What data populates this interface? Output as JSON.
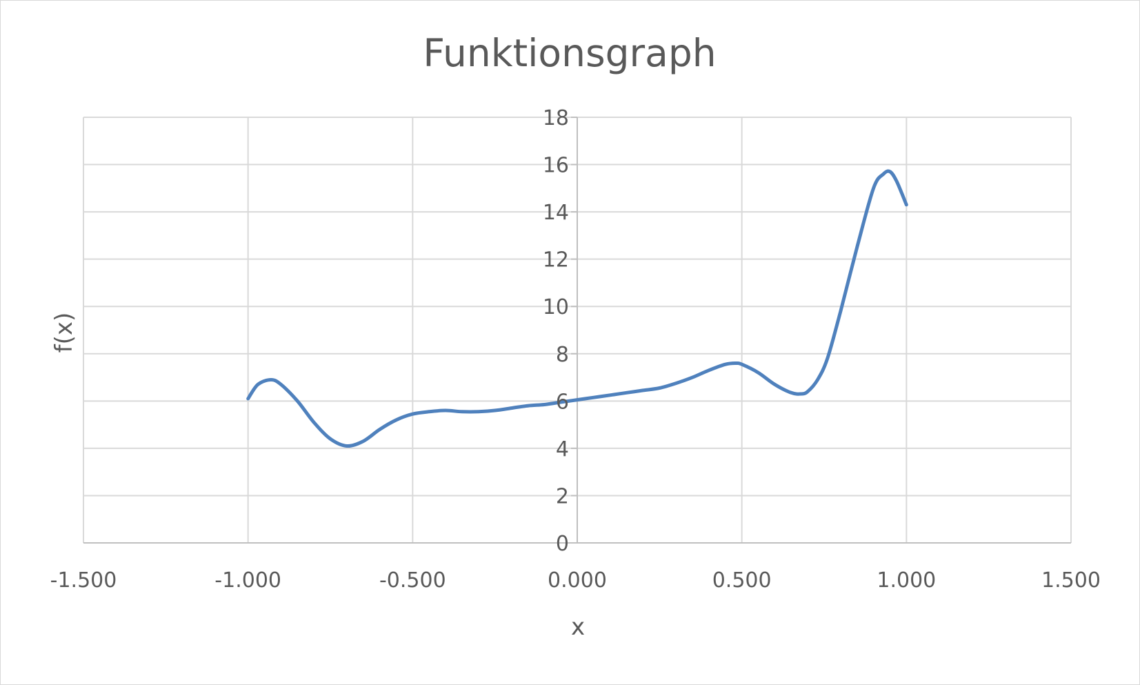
{
  "chart_data": {
    "type": "line",
    "title": "Funktionsgraph",
    "xlabel": "x",
    "ylabel": "f(x)",
    "xlim": [
      -1.5,
      1.5
    ],
    "ylim": [
      0,
      18
    ],
    "x_ticks": [
      "-1.500",
      "-1.000",
      "-0.500",
      "0.000",
      "0.500",
      "1.000",
      "1.500"
    ],
    "y_ticks": [
      "0",
      "2",
      "4",
      "6",
      "8",
      "10",
      "12",
      "14",
      "16",
      "18"
    ],
    "grid": true,
    "legend": "none",
    "series": [
      {
        "color": "#4f81bd",
        "x": [
          -1.0,
          -0.97,
          -0.93,
          -0.9,
          -0.85,
          -0.8,
          -0.75,
          -0.7,
          -0.65,
          -0.6,
          -0.55,
          -0.5,
          -0.45,
          -0.4,
          -0.35,
          -0.3,
          -0.25,
          -0.2,
          -0.15,
          -0.1,
          -0.05,
          0.0,
          0.05,
          0.1,
          0.15,
          0.2,
          0.25,
          0.3,
          0.35,
          0.4,
          0.45,
          0.48,
          0.5,
          0.55,
          0.6,
          0.65,
          0.68,
          0.7,
          0.73,
          0.76,
          0.8,
          0.85,
          0.9,
          0.93,
          0.95,
          0.97,
          1.0
        ],
        "y": [
          6.1,
          6.7,
          6.9,
          6.7,
          6.0,
          5.1,
          4.4,
          4.1,
          4.3,
          4.8,
          5.2,
          5.45,
          5.55,
          5.6,
          5.55,
          5.55,
          5.6,
          5.7,
          5.8,
          5.85,
          5.95,
          6.05,
          6.15,
          6.25,
          6.35,
          6.45,
          6.55,
          6.75,
          7.0,
          7.3,
          7.55,
          7.6,
          7.55,
          7.2,
          6.7,
          6.35,
          6.3,
          6.4,
          6.9,
          7.8,
          9.8,
          12.5,
          15.0,
          15.6,
          15.7,
          15.3,
          14.3
        ]
      }
    ]
  }
}
